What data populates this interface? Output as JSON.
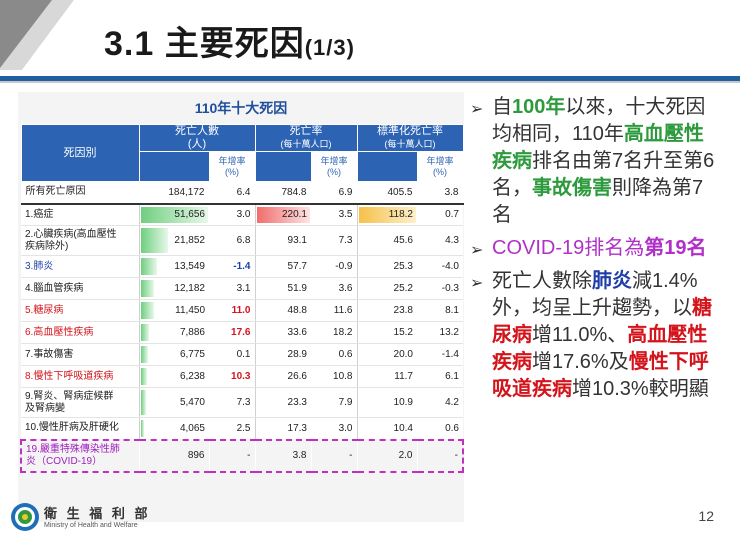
{
  "slide": {
    "title": "3.1 主要死因",
    "title_suffix": "(1/3)",
    "page_number": "12"
  },
  "table": {
    "title": "110年十大死因",
    "headers": {
      "cause": "死因別",
      "deaths": "死亡人數",
      "deaths_unit": "(人)",
      "rate": "死亡率",
      "rate_unit": "(每十萬人口)",
      "std_rate": "標準化死亡率",
      "std_rate_unit": "(每十萬人口)",
      "yoy": "年增率",
      "yoy_unit": "(%)"
    },
    "all_causes": {
      "label": "所有死亡原因",
      "deaths": "184,172",
      "deaths_yoy": "6.4",
      "rate": "784.8",
      "rate_yoy": "6.9",
      "std": "405.5",
      "std_yoy": "3.8"
    },
    "rows": [
      {
        "label": "1.癌症",
        "label2": "",
        "color": "black",
        "deaths": "51,656",
        "deaths_yoy": "3.0",
        "rate": "220.1",
        "rate_yoy": "3.5",
        "std": "118.2",
        "std_yoy": "0.7",
        "deaths_frac": 1.0,
        "rate_frac": 1.0,
        "std_frac": 1.0,
        "yoy_highlight": false
      },
      {
        "label": "2.心臟疾病(高血壓性",
        "label2": "疾病除外)",
        "color": "black",
        "deaths": "21,852",
        "deaths_yoy": "6.8",
        "rate": "93.1",
        "rate_yoy": "7.3",
        "std": "45.6",
        "std_yoy": "4.3",
        "deaths_frac": 0.42,
        "rate_frac": 0,
        "std_frac": 0,
        "yoy_highlight": false
      },
      {
        "label": "3.肺炎",
        "label2": "",
        "color": "blue",
        "deaths": "13,549",
        "deaths_yoy": "-1.4",
        "rate": "57.7",
        "rate_yoy": "-0.9",
        "std": "25.3",
        "std_yoy": "-4.0",
        "deaths_frac": 0.26,
        "rate_frac": 0,
        "std_frac": 0,
        "yoy_highlight": "blue"
      },
      {
        "label": "4.腦血管疾病",
        "label2": "",
        "color": "black",
        "deaths": "12,182",
        "deaths_yoy": "3.1",
        "rate": "51.9",
        "rate_yoy": "3.6",
        "std": "25.2",
        "std_yoy": "-0.3",
        "deaths_frac": 0.23,
        "rate_frac": 0,
        "std_frac": 0,
        "yoy_highlight": false
      },
      {
        "label": "5.糖尿病",
        "label2": "",
        "color": "red",
        "deaths": "11,450",
        "deaths_yoy": "11.0",
        "rate": "48.8",
        "rate_yoy": "11.6",
        "std": "23.8",
        "std_yoy": "8.1",
        "deaths_frac": 0.22,
        "rate_frac": 0,
        "std_frac": 0,
        "yoy_highlight": "red"
      },
      {
        "label": "6.高血壓性疾病",
        "label2": "",
        "color": "red",
        "deaths": "7,886",
        "deaths_yoy": "17.6",
        "rate": "33.6",
        "rate_yoy": "18.2",
        "std": "15.2",
        "std_yoy": "13.2",
        "deaths_frac": 0.15,
        "rate_frac": 0,
        "std_frac": 0,
        "yoy_highlight": "red"
      },
      {
        "label": "7.事故傷害",
        "label2": "",
        "color": "black",
        "deaths": "6,775",
        "deaths_yoy": "0.1",
        "rate": "28.9",
        "rate_yoy": "0.6",
        "std": "20.0",
        "std_yoy": "-1.4",
        "deaths_frac": 0.13,
        "rate_frac": 0,
        "std_frac": 0,
        "yoy_highlight": false
      },
      {
        "label": "8.慢性下呼吸道疾病",
        "label2": "",
        "color": "red",
        "deaths": "6,238",
        "deaths_yoy": "10.3",
        "rate": "26.6",
        "rate_yoy": "10.8",
        "std": "11.7",
        "std_yoy": "6.1",
        "deaths_frac": 0.12,
        "rate_frac": 0,
        "std_frac": 0,
        "yoy_highlight": "red"
      },
      {
        "label": "9.腎炎、腎病症候群",
        "label2": "及腎病變",
        "color": "black",
        "deaths": "5,470",
        "deaths_yoy": "7.3",
        "rate": "23.3",
        "rate_yoy": "7.9",
        "std": "10.9",
        "std_yoy": "4.2",
        "deaths_frac": 0.11,
        "rate_frac": 0,
        "std_frac": 0,
        "yoy_highlight": false
      },
      {
        "label": "10.慢性肝病及肝硬化",
        "label2": "",
        "color": "black",
        "deaths": "4,065",
        "deaths_yoy": "2.5",
        "rate": "17.3",
        "rate_yoy": "3.0",
        "std": "10.4",
        "std_yoy": "0.6",
        "deaths_frac": 0.08,
        "rate_frac": 0,
        "std_frac": 0,
        "yoy_highlight": false
      }
    ],
    "covid": {
      "label": "19.嚴重特殊傳染性肺",
      "label2": "炎（COVID-19）",
      "deaths": "896",
      "deaths_yoy": "-",
      "rate": "3.8",
      "rate_yoy": "-",
      "std": "2.0",
      "std_yoy": "-"
    }
  },
  "bullets": {
    "b1": [
      "自",
      "100年",
      "以來，十大死因均相同，110年",
      "高血壓性疾病",
      "排名由第7名升至第6名，",
      "事故傷害",
      "則降為第7名"
    ],
    "b2": [
      "COVID-19",
      "排名為",
      "第19名"
    ],
    "b3": [
      "死亡人數除",
      "肺炎",
      "減1.4%外，均呈上升趨勢，以",
      "糖尿病",
      "增11.0%、",
      "高血壓性疾病",
      "增17.6%及",
      "慢性下呼吸道疾病",
      "增10.3%較明顯"
    ]
  },
  "footer": {
    "org_zh": "衛 生 福 利 部",
    "org_en": "Ministry of Health and Welfare",
    "logo_icon": "ministry-seal-icon"
  },
  "colors": {
    "header_blue": "#2d63b3",
    "accent_green": "#2e9a3e",
    "accent_red": "#d4141b",
    "accent_purple": "#b030c8",
    "accent_blue": "#1f3fa8"
  }
}
